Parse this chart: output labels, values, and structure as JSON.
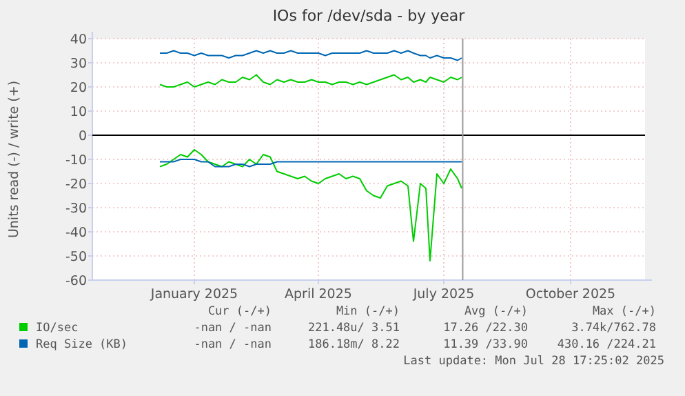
{
  "chart_data": {
    "type": "line",
    "title": "IOs for /dev/sda - by year",
    "ylabel": "Units read (-) / write (+)",
    "x": [
      "2024-12-21",
      "2024-12-26",
      "2024-12-31",
      "2025-01-05",
      "2025-01-10",
      "2025-01-15",
      "2025-01-20",
      "2025-01-25",
      "2025-01-30",
      "2025-02-04",
      "2025-02-09",
      "2025-02-14",
      "2025-02-19",
      "2025-02-24",
      "2025-03-01",
      "2025-03-06",
      "2025-03-11",
      "2025-03-16",
      "2025-03-21",
      "2025-03-26",
      "2025-03-31",
      "2025-04-05",
      "2025-04-10",
      "2025-04-15",
      "2025-04-20",
      "2025-04-25",
      "2025-04-30",
      "2025-05-05",
      "2025-05-10",
      "2025-05-15",
      "2025-05-20",
      "2025-05-25",
      "2025-05-30",
      "2025-06-04",
      "2025-06-09",
      "2025-06-14",
      "2025-06-19",
      "2025-06-23",
      "2025-06-28",
      "2025-07-02",
      "2025-07-05",
      "2025-07-10",
      "2025-07-15",
      "2025-07-20",
      "2025-07-25",
      "2025-07-28"
    ],
    "series": [
      {
        "name": "IO/sec",
        "color": "#00cc00",
        "values": [
          21,
          20,
          20,
          21,
          22,
          20,
          21,
          22,
          21,
          23,
          22,
          22,
          24,
          23,
          25,
          22,
          21,
          23,
          22,
          23,
          22,
          22,
          23,
          22,
          22,
          21,
          22,
          22,
          21,
          22,
          21,
          22,
          23,
          24,
          25,
          23,
          24,
          22,
          23,
          22,
          24,
          23,
          22,
          24,
          23,
          24
        ]
      },
      {
        "color": "#00cc00",
        "values": [
          -13,
          -12,
          -10,
          -8,
          -9,
          -6,
          -8,
          -11,
          -12,
          -13,
          -11,
          -12,
          -13,
          -10,
          -12,
          -8,
          -9,
          -15,
          -16,
          -17,
          -18,
          -17,
          -19,
          -20,
          -18,
          -17,
          -16,
          -18,
          -17,
          -18,
          -23,
          -25,
          -26,
          -21,
          -20,
          -19,
          -21,
          -44,
          -20,
          -22,
          -52,
          -16,
          -20,
          -14,
          -18,
          -22
        ]
      },
      {
        "name": "Req Size (KB)",
        "color": "#0066b3",
        "values": [
          34,
          34,
          35,
          34,
          34,
          33,
          34,
          33,
          33,
          33,
          32,
          33,
          33,
          34,
          35,
          34,
          35,
          34,
          34,
          35,
          34,
          34,
          34,
          34,
          33,
          34,
          34,
          34,
          34,
          34,
          35,
          34,
          34,
          34,
          35,
          34,
          35,
          34,
          33,
          33,
          32,
          33,
          32,
          32,
          31,
          32
        ]
      },
      {
        "color": "#0066b3",
        "values": [
          -11,
          -11,
          -11,
          -10,
          -10,
          -10,
          -11,
          -11,
          -13,
          -13,
          -13,
          -12,
          -12,
          -13,
          -12,
          -12,
          -12,
          -11,
          -11,
          -11,
          -11,
          -11,
          -11,
          -11,
          -11,
          -11,
          -11,
          -11,
          -11,
          -11,
          -11,
          -11,
          -11,
          -11,
          -11,
          -11,
          -11,
          -11,
          -11,
          -11,
          -11,
          -11,
          -11,
          -11,
          -11,
          -11
        ]
      }
    ],
    "xlim": [
      "2024-11-02",
      "2025-12-08"
    ],
    "xticks": [
      {
        "value": "2025-01-15",
        "label": "January 2025"
      },
      {
        "value": "2025-04-15",
        "label": "April 2025"
      },
      {
        "value": "2025-07-15",
        "label": "July 2025"
      },
      {
        "value": "2025-10-15",
        "label": "October 2025"
      }
    ],
    "ylim": [
      -60,
      40
    ],
    "yticks": [
      -60,
      -50,
      -40,
      -30,
      -20,
      -10,
      0,
      10,
      20,
      30,
      40
    ],
    "ref_lines": [
      {
        "axis": "y",
        "value": 0,
        "color": "#000000"
      },
      {
        "axis": "x",
        "value": "2025-07-28T17:25",
        "color": "#999999"
      }
    ],
    "grid": true,
    "legend": "bottom",
    "annotations": [
      "Cur (-/+)",
      "Min (-/+)",
      "Avg (-/+)",
      "Max (-/+)",
      "-nan / -nan",
      "221.48u/ 3.51",
      "17.26 /22.30",
      "3.74k/762.78",
      "-nan / -nan",
      "186.18m/ 8.22",
      "11.39 /33.90",
      "430.16 /224.21",
      "Last update: Mon Jul 28 17:25:02 2025"
    ]
  }
}
